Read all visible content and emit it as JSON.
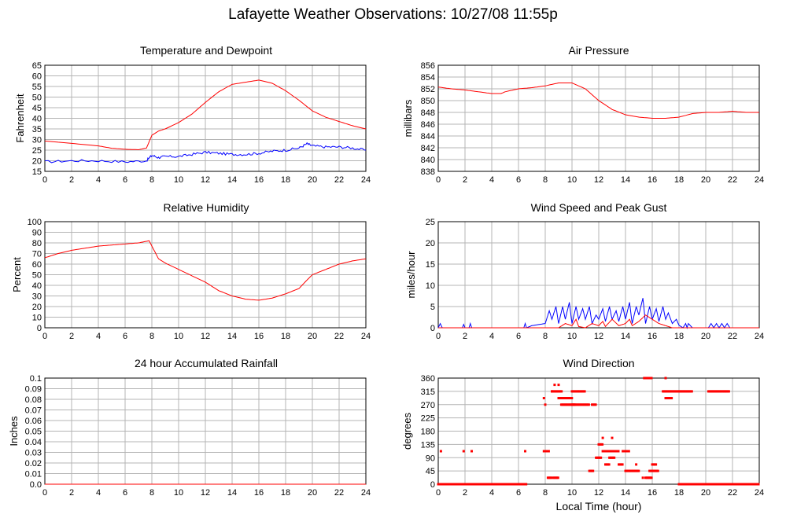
{
  "page": {
    "title": "Lafayette Weather Observations: 10/27/08 11:55p",
    "xlabel": "Local Time (hour)"
  },
  "colors": {
    "red": "#ff0000",
    "blue": "#0000ff",
    "grid": "#b4b4b4"
  },
  "chart_data": [
    {
      "id": "temp",
      "type": "line",
      "title": "Temperature and Dewpoint",
      "ylabel": "Fahrenheit",
      "xlim": [
        0,
        24
      ],
      "ylim": [
        15,
        65
      ],
      "xticks": [
        0,
        2,
        4,
        6,
        8,
        10,
        12,
        14,
        16,
        18,
        20,
        22,
        24
      ],
      "yticks": [
        15,
        20,
        25,
        30,
        35,
        40,
        45,
        50,
        55,
        60,
        65
      ],
      "grid": true,
      "series": [
        {
          "color": "red",
          "x": [
            0,
            2,
            4,
            5,
            6,
            7,
            7.6,
            8,
            8.5,
            9,
            10,
            11,
            12,
            13,
            14,
            15,
            16,
            17,
            18,
            19,
            20,
            21,
            22,
            23,
            24
          ],
          "y": [
            29.3,
            28.2,
            27,
            25.9,
            25.4,
            25.2,
            26,
            32,
            34,
            35,
            38,
            42,
            47.5,
            52.5,
            56,
            57,
            58,
            56.5,
            53,
            48.5,
            43.5,
            40.5,
            38.5,
            36.5,
            35
          ]
        },
        {
          "color": "blue",
          "noise": 0.6,
          "x": [
            0,
            2,
            4,
            6,
            7.6,
            8,
            8.5,
            9,
            10,
            11,
            12,
            13,
            14,
            15,
            16,
            17,
            18,
            19,
            19.6,
            20,
            21,
            22,
            23,
            24
          ],
          "y": [
            19.5,
            20,
            20,
            19.5,
            20,
            22.5,
            21.5,
            22,
            22,
            23,
            24,
            23.5,
            23,
            23,
            23.5,
            24.5,
            25,
            26,
            28,
            27,
            26.5,
            26.5,
            26,
            25
          ]
        }
      ]
    },
    {
      "id": "pressure",
      "type": "line",
      "title": "Air Pressure",
      "ylabel": "millibars",
      "xlim": [
        0,
        24
      ],
      "ylim": [
        838,
        856
      ],
      "xticks": [
        0,
        2,
        4,
        6,
        8,
        10,
        12,
        14,
        16,
        18,
        20,
        22,
        24
      ],
      "yticks": [
        838,
        840,
        842,
        844,
        846,
        848,
        850,
        852,
        854,
        856
      ],
      "grid": true,
      "series": [
        {
          "color": "red",
          "x": [
            0,
            1,
            2,
            3,
            4,
            4.7,
            5,
            6,
            7,
            8,
            9,
            10,
            11,
            12,
            13,
            14,
            15,
            16,
            17,
            18,
            19,
            20,
            21,
            22,
            23,
            24
          ],
          "y": [
            852.3,
            852,
            851.8,
            851.5,
            851.2,
            851.2,
            851.5,
            852,
            852.2,
            852.5,
            853,
            853,
            852,
            850,
            848.5,
            847.6,
            847.2,
            847,
            847,
            847.2,
            847.8,
            848,
            848,
            848.2,
            848,
            848
          ]
        }
      ]
    },
    {
      "id": "humidity",
      "type": "line",
      "title": "Relative Humidity",
      "ylabel": "Percent",
      "xlim": [
        0,
        24
      ],
      "ylim": [
        0,
        100
      ],
      "xticks": [
        0,
        2,
        4,
        6,
        8,
        10,
        12,
        14,
        16,
        18,
        20,
        22,
        24
      ],
      "yticks": [
        0,
        10,
        20,
        30,
        40,
        50,
        60,
        70,
        80,
        90,
        100
      ],
      "grid": true,
      "series": [
        {
          "color": "red",
          "x": [
            0,
            1,
            2,
            3,
            4,
            5,
            6,
            7,
            7.8,
            8,
            8.5,
            9,
            10,
            11,
            12,
            13,
            14,
            15,
            16,
            17,
            18,
            19,
            19.6,
            20,
            21,
            22,
            23,
            24
          ],
          "y": [
            66,
            70,
            73,
            75,
            77,
            78,
            79,
            80,
            82,
            77,
            65,
            61,
            55,
            49,
            43,
            35,
            30,
            27,
            26,
            28,
            32,
            37,
            45,
            50,
            55,
            60,
            63,
            65
          ]
        }
      ]
    },
    {
      "id": "wind",
      "type": "line",
      "title": "Wind Speed and Peak Gust",
      "ylabel": "miles/hour",
      "xlim": [
        0,
        24
      ],
      "ylim": [
        0,
        25
      ],
      "xticks": [
        0,
        2,
        4,
        6,
        8,
        10,
        12,
        14,
        16,
        18,
        20,
        22,
        24
      ],
      "yticks": [
        0,
        5,
        10,
        15,
        20,
        25
      ],
      "grid": true,
      "series": [
        {
          "color": "blue",
          "x": [
            0,
            0.15,
            0.3,
            0.5,
            1.8,
            1.9,
            2.0,
            2.3,
            2.4,
            2.5,
            6.4,
            6.5,
            6.6,
            7,
            8,
            8.3,
            8.5,
            8.8,
            9,
            9.3,
            9.5,
            9.8,
            10,
            10.3,
            10.5,
            10.8,
            11,
            11.3,
            11.5,
            11.8,
            12,
            12.3,
            12.5,
            12.8,
            13,
            13.3,
            13.5,
            13.8,
            14,
            14.3,
            14.5,
            14.8,
            15,
            15.3,
            15.5,
            15.8,
            16,
            16.3,
            16.5,
            16.8,
            17,
            17.2,
            17.5,
            17.8,
            18,
            18.3,
            18.5,
            18.6,
            18.7,
            19,
            20.2,
            20.4,
            20.6,
            20.8,
            21,
            21.2,
            21.4,
            21.6,
            21.8,
            22,
            24
          ],
          "y": [
            0,
            1,
            0,
            0,
            0,
            0.8,
            0,
            0,
            1,
            0,
            0,
            1,
            0,
            0.5,
            1,
            4,
            2,
            5,
            1,
            5,
            2,
            6,
            1,
            5,
            2,
            4.5,
            2,
            5,
            1,
            3,
            2,
            4.5,
            1.5,
            5,
            2,
            4,
            1.5,
            5,
            2,
            6,
            1,
            5,
            3,
            7,
            1,
            5,
            2,
            4.5,
            1.5,
            5,
            2,
            3.5,
            1,
            2,
            0.6,
            0,
            1,
            0,
            1,
            0,
            0,
            1,
            0,
            1,
            0,
            1,
            0,
            1,
            0,
            0,
            0
          ]
        },
        {
          "color": "red",
          "x": [
            0,
            8,
            9,
            9.5,
            10,
            10.3,
            10.5,
            11,
            11.5,
            12,
            12.3,
            12.5,
            13,
            13.5,
            14,
            14.3,
            14.5,
            15,
            15.5,
            16,
            16.5,
            17,
            17.5,
            18,
            24
          ],
          "y": [
            0,
            0,
            0,
            1,
            0.5,
            2,
            0.3,
            0,
            1,
            0.5,
            1.5,
            0.3,
            2,
            0.5,
            1,
            2,
            0.5,
            1.5,
            3,
            2,
            1,
            0.5,
            0,
            0,
            0
          ]
        }
      ]
    },
    {
      "id": "rain",
      "type": "line",
      "title": "24 hour Accumulated Rainfall",
      "ylabel": "Inches",
      "xlim": [
        0,
        24
      ],
      "ylim": [
        0,
        0.1
      ],
      "xticks": [
        0,
        2,
        4,
        6,
        8,
        10,
        12,
        14,
        16,
        18,
        20,
        22,
        24
      ],
      "yticks": [
        "0.0",
        "0.01",
        "0.02",
        "0.03",
        "0.04",
        "0.05",
        "0.06",
        "0.07",
        "0.08",
        "0.09",
        "0.1"
      ],
      "grid": true,
      "series": [
        {
          "color": "red",
          "x": [
            0,
            24
          ],
          "y": [
            0,
            0
          ]
        }
      ]
    },
    {
      "id": "direction",
      "type": "scatter",
      "title": "Wind Direction",
      "ylabel": "degrees",
      "xlim": [
        0,
        24
      ],
      "ylim": [
        0,
        360
      ],
      "xticks": [
        0,
        2,
        4,
        6,
        8,
        10,
        12,
        14,
        16,
        18,
        20,
        22,
        24
      ],
      "yticks": [
        0,
        45,
        90,
        135,
        180,
        225,
        270,
        315,
        360
      ],
      "grid": true,
      "series": [
        {
          "color": "red",
          "ranges": [
            [
              0,
              6.6,
              0
            ],
            [
              18.0,
              24,
              0
            ],
            [
              7.9,
              8.3,
              112
            ],
            [
              8.2,
              8.5,
              22
            ],
            [
              8.6,
              9.0,
              22
            ],
            [
              8.5,
              9.3,
              315
            ],
            [
              9.0,
              10.0,
              292
            ],
            [
              9.2,
              10.2,
              270
            ],
            [
              10.0,
              11.3,
              270
            ],
            [
              10.0,
              10.5,
              315
            ],
            [
              10.5,
              11.0,
              315
            ],
            [
              11.5,
              11.8,
              270
            ],
            [
              11.3,
              11.6,
              45
            ],
            [
              11.8,
              12.2,
              90
            ],
            [
              12.0,
              12.3,
              135
            ],
            [
              12.3,
              13.5,
              112
            ],
            [
              12.5,
              12.8,
              67
            ],
            [
              12.8,
              13.2,
              90
            ],
            [
              13.8,
              14.3,
              112
            ],
            [
              14.0,
              15.0,
              45
            ],
            [
              13.5,
              13.8,
              67
            ],
            [
              15.4,
              16.0,
              360
            ],
            [
              15.8,
              16.5,
              45
            ],
            [
              15.5,
              16.0,
              22
            ],
            [
              16.0,
              16.3,
              67
            ],
            [
              16.8,
              19.0,
              315
            ],
            [
              17.0,
              17.5,
              292
            ],
            [
              20.2,
              21.8,
              315
            ]
          ],
          "points": [
            [
              0.2,
              112
            ],
            [
              1.9,
              112
            ],
            [
              2.5,
              112
            ],
            [
              6.5,
              112
            ],
            [
              7.9,
              292
            ],
            [
              8.0,
              270
            ],
            [
              8.7,
              337
            ],
            [
              9.0,
              337
            ],
            [
              13.0,
              157
            ],
            [
              12.3,
              157
            ],
            [
              14.8,
              67
            ],
            [
              15.3,
              22
            ],
            [
              17.0,
              360
            ],
            [
              8.5,
              315
            ]
          ]
        }
      ]
    }
  ]
}
